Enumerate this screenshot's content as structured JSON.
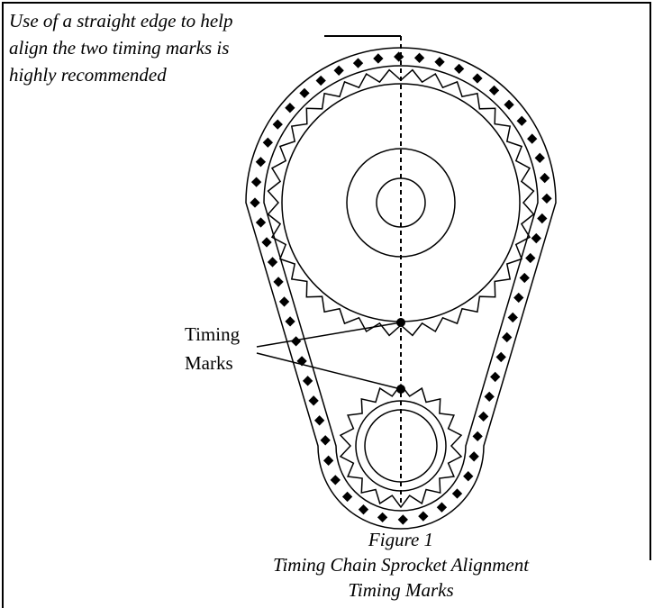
{
  "note": {
    "lines": [
      "Use of a straight edge to help",
      "align the two timing marks is",
      "highly recommended"
    ]
  },
  "label": {
    "lines": [
      "Timing",
      "Marks"
    ]
  },
  "caption": {
    "lines": [
      "Figure 1",
      "Timing Chain Sprocket Alignment",
      "Timing Marks"
    ]
  }
}
